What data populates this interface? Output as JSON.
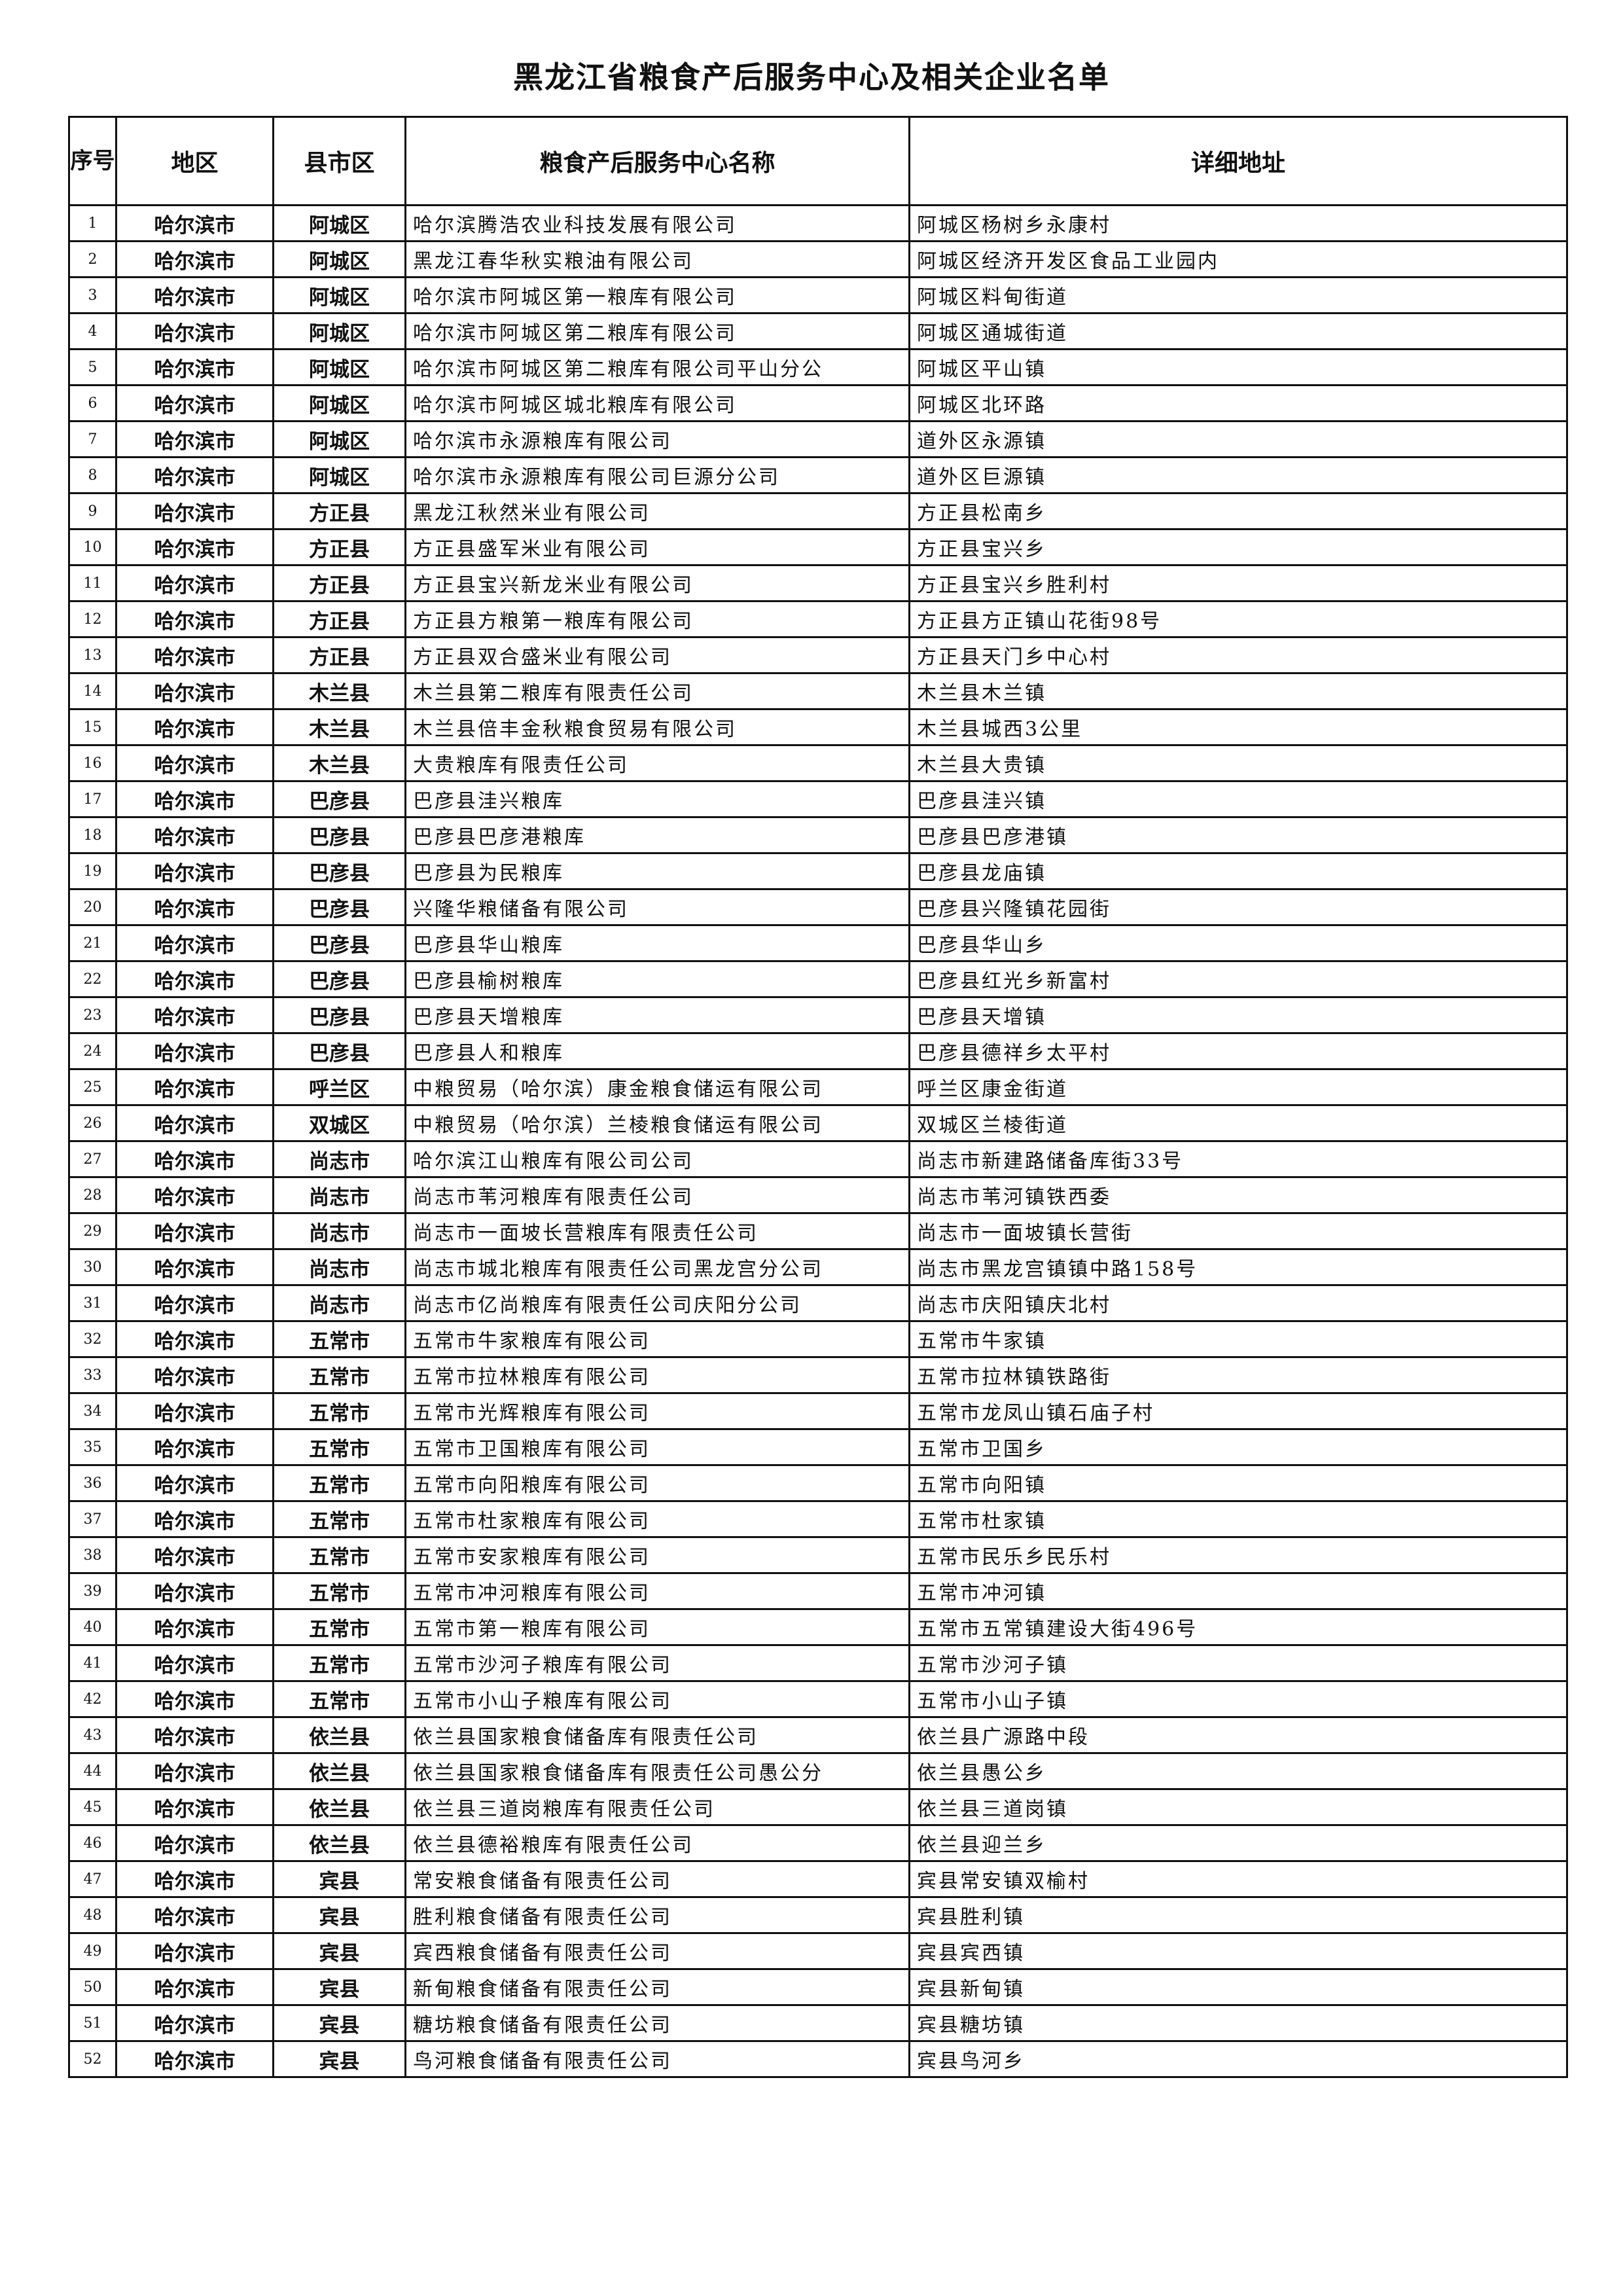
{
  "title": "黑龙江省粮食产后服务中心及相关企业名单",
  "headers": {
    "no": "序号",
    "region": "地区",
    "county": "县市区",
    "name": "粮食产后服务中心名称",
    "address": "详细地址"
  },
  "rows": [
    [
      "1",
      "哈尔滨市",
      "阿城区",
      "哈尔滨腾浩农业科技发展有限公司",
      "阿城区杨树乡永康村"
    ],
    [
      "2",
      "哈尔滨市",
      "阿城区",
      "黑龙江春华秋实粮油有限公司",
      "阿城区经济开发区食品工业园内"
    ],
    [
      "3",
      "哈尔滨市",
      "阿城区",
      "哈尔滨市阿城区第一粮库有限公司",
      "阿城区料甸街道"
    ],
    [
      "4",
      "哈尔滨市",
      "阿城区",
      "哈尔滨市阿城区第二粮库有限公司",
      "阿城区通城街道"
    ],
    [
      "5",
      "哈尔滨市",
      "阿城区",
      "哈尔滨市阿城区第二粮库有限公司平山分公",
      "阿城区平山镇"
    ],
    [
      "6",
      "哈尔滨市",
      "阿城区",
      "哈尔滨市阿城区城北粮库有限公司",
      "阿城区北环路"
    ],
    [
      "7",
      "哈尔滨市",
      "阿城区",
      "哈尔滨市永源粮库有限公司",
      "道外区永源镇"
    ],
    [
      "8",
      "哈尔滨市",
      "阿城区",
      "哈尔滨市永源粮库有限公司巨源分公司",
      "道外区巨源镇"
    ],
    [
      "9",
      "哈尔滨市",
      "方正县",
      "黑龙江秋然米业有限公司",
      "方正县松南乡"
    ],
    [
      "10",
      "哈尔滨市",
      "方正县",
      "方正县盛军米业有限公司",
      "方正县宝兴乡"
    ],
    [
      "11",
      "哈尔滨市",
      "方正县",
      "方正县宝兴新龙米业有限公司",
      "方正县宝兴乡胜利村"
    ],
    [
      "12",
      "哈尔滨市",
      "方正县",
      "方正县方粮第一粮库有限公司",
      "方正县方正镇山花街98号"
    ],
    [
      "13",
      "哈尔滨市",
      "方正县",
      "方正县双合盛米业有限公司",
      "方正县天门乡中心村"
    ],
    [
      "14",
      "哈尔滨市",
      "木兰县",
      "木兰县第二粮库有限责任公司",
      "木兰县木兰镇"
    ],
    [
      "15",
      "哈尔滨市",
      "木兰县",
      "木兰县倍丰金秋粮食贸易有限公司",
      "木兰县城西3公里"
    ],
    [
      "16",
      "哈尔滨市",
      "木兰县",
      "大贵粮库有限责任公司",
      "木兰县大贵镇"
    ],
    [
      "17",
      "哈尔滨市",
      "巴彦县",
      "巴彦县洼兴粮库",
      "巴彦县洼兴镇"
    ],
    [
      "18",
      "哈尔滨市",
      "巴彦县",
      "巴彦县巴彦港粮库",
      "巴彦县巴彦港镇"
    ],
    [
      "19",
      "哈尔滨市",
      "巴彦县",
      "巴彦县为民粮库",
      "巴彦县龙庙镇"
    ],
    [
      "20",
      "哈尔滨市",
      "巴彦县",
      "兴隆华粮储备有限公司",
      "巴彦县兴隆镇花园街"
    ],
    [
      "21",
      "哈尔滨市",
      "巴彦县",
      "巴彦县华山粮库",
      "巴彦县华山乡"
    ],
    [
      "22",
      "哈尔滨市",
      "巴彦县",
      "巴彦县榆树粮库",
      "巴彦县红光乡新富村"
    ],
    [
      "23",
      "哈尔滨市",
      "巴彦县",
      "巴彦县天增粮库",
      "巴彦县天增镇"
    ],
    [
      "24",
      "哈尔滨市",
      "巴彦县",
      "巴彦县人和粮库",
      "巴彦县德祥乡太平村"
    ],
    [
      "25",
      "哈尔滨市",
      "呼兰区",
      "中粮贸易（哈尔滨）康金粮食储运有限公司",
      "呼兰区康金街道"
    ],
    [
      "26",
      "哈尔滨市",
      "双城区",
      "中粮贸易（哈尔滨）兰棱粮食储运有限公司",
      "双城区兰棱街道"
    ],
    [
      "27",
      "哈尔滨市",
      "尚志市",
      "哈尔滨江山粮库有限公司公司",
      "尚志市新建路储备库街33号"
    ],
    [
      "28",
      "哈尔滨市",
      "尚志市",
      "尚志市苇河粮库有限责任公司",
      "尚志市苇河镇铁西委"
    ],
    [
      "29",
      "哈尔滨市",
      "尚志市",
      "尚志市一面坡长营粮库有限责任公司",
      "尚志市一面坡镇长营街"
    ],
    [
      "30",
      "哈尔滨市",
      "尚志市",
      "尚志市城北粮库有限责任公司黑龙宫分公司",
      "尚志市黑龙宫镇镇中路158号"
    ],
    [
      "31",
      "哈尔滨市",
      "尚志市",
      "尚志市亿尚粮库有限责任公司庆阳分公司",
      "尚志市庆阳镇庆北村"
    ],
    [
      "32",
      "哈尔滨市",
      "五常市",
      "五常市牛家粮库有限公司",
      "五常市牛家镇"
    ],
    [
      "33",
      "哈尔滨市",
      "五常市",
      "五常市拉林粮库有限公司",
      "五常市拉林镇铁路街"
    ],
    [
      "34",
      "哈尔滨市",
      "五常市",
      "五常市光辉粮库有限公司",
      "五常市龙凤山镇石庙子村"
    ],
    [
      "35",
      "哈尔滨市",
      "五常市",
      "五常市卫国粮库有限公司",
      "五常市卫国乡"
    ],
    [
      "36",
      "哈尔滨市",
      "五常市",
      "五常市向阳粮库有限公司",
      "五常市向阳镇"
    ],
    [
      "37",
      "哈尔滨市",
      "五常市",
      "五常市杜家粮库有限公司",
      "五常市杜家镇"
    ],
    [
      "38",
      "哈尔滨市",
      "五常市",
      "五常市安家粮库有限公司",
      "五常市民乐乡民乐村"
    ],
    [
      "39",
      "哈尔滨市",
      "五常市",
      "五常市冲河粮库有限公司",
      "五常市冲河镇"
    ],
    [
      "40",
      "哈尔滨市",
      "五常市",
      "五常市第一粮库有限公司",
      "五常市五常镇建设大街496号"
    ],
    [
      "41",
      "哈尔滨市",
      "五常市",
      "五常市沙河子粮库有限公司",
      "五常市沙河子镇"
    ],
    [
      "42",
      "哈尔滨市",
      "五常市",
      "五常市小山子粮库有限公司",
      "五常市小山子镇"
    ],
    [
      "43",
      "哈尔滨市",
      "依兰县",
      "依兰县国家粮食储备库有限责任公司",
      "依兰县广源路中段"
    ],
    [
      "44",
      "哈尔滨市",
      "依兰县",
      "依兰县国家粮食储备库有限责任公司愚公分",
      "依兰县愚公乡"
    ],
    [
      "45",
      "哈尔滨市",
      "依兰县",
      "依兰县三道岗粮库有限责任公司",
      "依兰县三道岗镇"
    ],
    [
      "46",
      "哈尔滨市",
      "依兰县",
      "依兰县德裕粮库有限责任公司",
      "依兰县迎兰乡"
    ],
    [
      "47",
      "哈尔滨市",
      "宾县",
      "常安粮食储备有限责任公司",
      "宾县常安镇双榆村"
    ],
    [
      "48",
      "哈尔滨市",
      "宾县",
      "胜利粮食储备有限责任公司",
      "宾县胜利镇"
    ],
    [
      "49",
      "哈尔滨市",
      "宾县",
      "宾西粮食储备有限责任公司",
      "宾县宾西镇"
    ],
    [
      "50",
      "哈尔滨市",
      "宾县",
      "新甸粮食储备有限责任公司",
      "宾县新甸镇"
    ],
    [
      "51",
      "哈尔滨市",
      "宾县",
      "糖坊粮食储备有限责任公司",
      "宾县糖坊镇"
    ],
    [
      "52",
      "哈尔滨市",
      "宾县",
      "鸟河粮食储备有限责任公司",
      "宾县鸟河乡"
    ]
  ]
}
